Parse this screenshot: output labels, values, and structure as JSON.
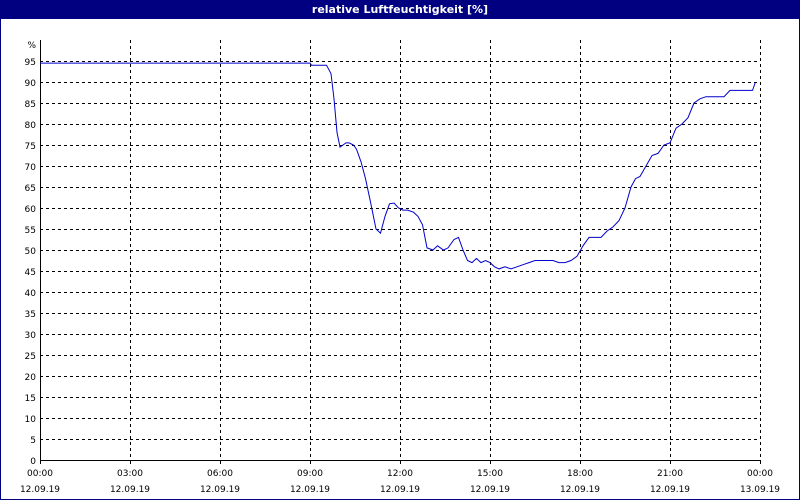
{
  "window": {
    "title": "relative Luftfeuchtigkeit [%]"
  },
  "colors": {
    "titlebar": "#000080",
    "series_line": "#0000cc",
    "grid": "#000000",
    "background": "#ffffff"
  },
  "chart_data": {
    "type": "line",
    "title": "relative Luftfeuchtigkeit [%]",
    "ylabel": "%",
    "xlabel": "",
    "ylim": [
      0,
      100
    ],
    "xlim": [
      0,
      24
    ],
    "yticks": [
      0,
      5,
      10,
      15,
      20,
      25,
      30,
      35,
      40,
      45,
      50,
      55,
      60,
      65,
      70,
      75,
      80,
      85,
      90,
      95
    ],
    "xticks": [
      {
        "x": 0,
        "time": "00:00",
        "date": "12.09.19"
      },
      {
        "x": 3,
        "time": "03:00",
        "date": "12.09.19"
      },
      {
        "x": 6,
        "time": "06:00",
        "date": "12.09.19"
      },
      {
        "x": 9,
        "time": "09:00",
        "date": "12.09.19"
      },
      {
        "x": 12,
        "time": "12:00",
        "date": "12.09.19"
      },
      {
        "x": 15,
        "time": "15:00",
        "date": "12.09.19"
      },
      {
        "x": 18,
        "time": "18:00",
        "date": "12.09.19"
      },
      {
        "x": 21,
        "time": "21:00",
        "date": "12.09.19"
      },
      {
        "x": 24,
        "time": "00:00",
        "date": "13.09.19"
      }
    ],
    "grid": true,
    "series": [
      {
        "x": [
          0,
          9.0,
          9.05,
          9.55,
          9.7,
          9.8,
          9.9,
          10.0,
          10.1,
          10.2,
          10.3,
          10.45,
          10.55,
          10.7,
          10.85,
          11.0,
          11.2,
          11.35,
          11.5,
          11.65,
          11.8,
          11.95,
          12.1,
          12.25,
          12.45,
          12.6,
          12.75,
          12.9,
          13.1,
          13.25,
          13.45,
          13.6,
          13.8,
          13.95,
          14.1,
          14.25,
          14.4,
          14.55,
          14.7,
          14.85,
          15.0,
          15.15,
          15.3,
          15.5,
          15.7,
          15.9,
          16.1,
          16.3,
          16.5,
          16.7,
          16.9,
          17.1,
          17.3,
          17.5,
          17.7,
          17.9,
          18.1,
          18.3,
          18.5,
          18.7,
          18.9,
          19.1,
          19.3,
          19.5,
          19.7,
          19.85,
          20.0,
          20.2,
          20.4,
          20.6,
          20.8,
          21.0,
          21.2,
          21.4,
          21.6,
          21.8,
          22.0,
          22.2,
          22.4,
          22.6,
          22.8,
          23.0,
          23.2,
          23.4,
          23.6,
          23.75,
          23.85
        ],
        "y": [
          94.5,
          94.5,
          94,
          94,
          92,
          86,
          78,
          74.5,
          75,
          75.5,
          75.5,
          75,
          74,
          71,
          67,
          62,
          55,
          54,
          58,
          61,
          61.2,
          60,
          59.5,
          59.5,
          59,
          58,
          56,
          50.5,
          50,
          51,
          50,
          50.5,
          52.5,
          53,
          50,
          47.5,
          47,
          48,
          47,
          47.5,
          47,
          46,
          45.5,
          46,
          45.5,
          46,
          46.5,
          47,
          47.5,
          47.5,
          47.5,
          47.5,
          47,
          47,
          47.5,
          48.5,
          51,
          53,
          53,
          53,
          54.5,
          55.5,
          57,
          60,
          65,
          67,
          67.5,
          70,
          72.5,
          73,
          75,
          75.5,
          79,
          80,
          81.5,
          85,
          86,
          86.5,
          86.5,
          86.5,
          86.5,
          88,
          88,
          88,
          88,
          88,
          90
        ]
      }
    ]
  }
}
